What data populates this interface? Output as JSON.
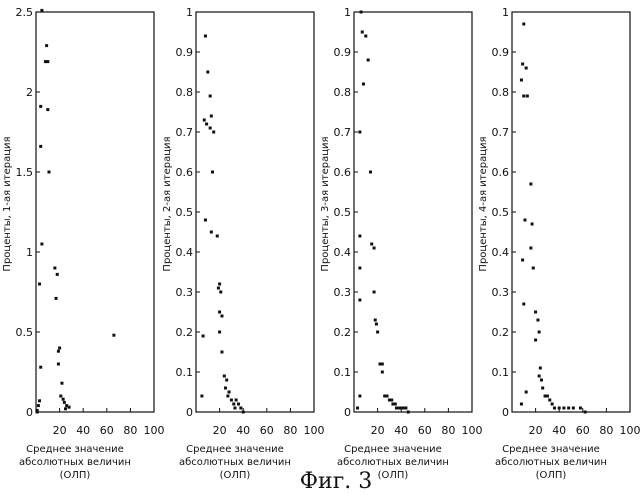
{
  "figure": {
    "caption": "Фиг. 3"
  },
  "chart_data": [
    {
      "type": "scatter",
      "ylabel": "Проценты, 1-ая итерация",
      "xlabel_lines": [
        "Среднее значение",
        "абсолютных величин",
        "(ОЛП)"
      ],
      "xlim": [
        0,
        100
      ],
      "ylim": [
        0,
        2.5
      ],
      "xticks": [
        20,
        40,
        60,
        80,
        100
      ],
      "yticks": [
        0,
        0.5,
        1,
        1.5,
        2,
        2.5
      ],
      "ytick_labels": [
        "0",
        "0.5",
        "1",
        "1.5",
        "2",
        "2.5"
      ],
      "grid": false,
      "points": [
        [
          5,
          2.51
        ],
        [
          9,
          2.29
        ],
        [
          8,
          2.19
        ],
        [
          10,
          2.19
        ],
        [
          4,
          1.91
        ],
        [
          10,
          1.89
        ],
        [
          4,
          1.66
        ],
        [
          11,
          1.5
        ],
        [
          5,
          1.05
        ],
        [
          16,
          0.9
        ],
        [
          18,
          0.86
        ],
        [
          3,
          0.8
        ],
        [
          17,
          0.71
        ],
        [
          20,
          0.4
        ],
        [
          19,
          0.38
        ],
        [
          19,
          0.3
        ],
        [
          4,
          0.28
        ],
        [
          22,
          0.18
        ],
        [
          21,
          0.1
        ],
        [
          23,
          0.08
        ],
        [
          24,
          0.06
        ],
        [
          26,
          0.04
        ],
        [
          28,
          0.03
        ],
        [
          25,
          0.02
        ],
        [
          3,
          0.07
        ],
        [
          2,
          0.04
        ],
        [
          1,
          0.01
        ],
        [
          1,
          0.0
        ],
        [
          66,
          0.48
        ]
      ]
    },
    {
      "type": "scatter",
      "ylabel": "Проценты, 2-ая итерация",
      "xlabel_lines": [
        "Среднее значение",
        "абсолютных величин",
        "(ОЛП)"
      ],
      "xlim": [
        0,
        100
      ],
      "ylim": [
        0,
        1.0
      ],
      "xticks": [
        20,
        40,
        60,
        80,
        100
      ],
      "yticks": [
        0,
        0.1,
        0.2,
        0.3,
        0.4,
        0.5,
        0.6,
        0.7,
        0.8,
        0.9,
        1.0
      ],
      "ytick_labels": [
        "0",
        "0.1",
        "0.2",
        "0.3",
        "0.4",
        "0.5",
        "0.6",
        "0.7",
        "0.8",
        "0.9",
        "1"
      ],
      "grid": false,
      "points": [
        [
          8,
          0.94
        ],
        [
          10,
          0.85
        ],
        [
          12,
          0.79
        ],
        [
          7,
          0.73
        ],
        [
          9,
          0.72
        ],
        [
          12,
          0.71
        ],
        [
          13,
          0.74
        ],
        [
          15,
          0.7
        ],
        [
          14,
          0.6
        ],
        [
          8,
          0.48
        ],
        [
          13,
          0.45
        ],
        [
          18,
          0.44
        ],
        [
          20,
          0.32
        ],
        [
          19,
          0.31
        ],
        [
          21,
          0.3
        ],
        [
          20,
          0.25
        ],
        [
          22,
          0.24
        ],
        [
          20,
          0.2
        ],
        [
          6,
          0.19
        ],
        [
          22,
          0.15
        ],
        [
          24,
          0.09
        ],
        [
          26,
          0.08
        ],
        [
          25,
          0.06
        ],
        [
          28,
          0.05
        ],
        [
          27,
          0.04
        ],
        [
          30,
          0.03
        ],
        [
          32,
          0.02
        ],
        [
          34,
          0.03
        ],
        [
          36,
          0.02
        ],
        [
          38,
          0.01
        ],
        [
          40,
          0.0
        ],
        [
          33,
          0.01
        ],
        [
          5,
          0.04
        ]
      ]
    },
    {
      "type": "scatter",
      "ylabel": "Проценты, 3-ая итерация",
      "xlabel_lines": [
        "Среднее значение",
        "абсолютных величин",
        "(ОЛП)"
      ],
      "xlim": [
        0,
        100
      ],
      "ylim": [
        0,
        1.0
      ],
      "xticks": [
        20,
        40,
        60,
        80,
        100
      ],
      "yticks": [
        0,
        0.1,
        0.2,
        0.3,
        0.4,
        0.5,
        0.6,
        0.7,
        0.8,
        0.9,
        1.0
      ],
      "ytick_labels": [
        "0",
        "0.1",
        "0.2",
        "0.3",
        "0.4",
        "0.5",
        "0.6",
        "0.7",
        "0.8",
        "0.9",
        "1"
      ],
      "grid": false,
      "points": [
        [
          6,
          1.0
        ],
        [
          7,
          0.95
        ],
        [
          10,
          0.94
        ],
        [
          12,
          0.88
        ],
        [
          8,
          0.82
        ],
        [
          5,
          0.7
        ],
        [
          14,
          0.6
        ],
        [
          15,
          0.42
        ],
        [
          17,
          0.41
        ],
        [
          5,
          0.44
        ],
        [
          5,
          0.36
        ],
        [
          5,
          0.28
        ],
        [
          17,
          0.3
        ],
        [
          18,
          0.23
        ],
        [
          19,
          0.22
        ],
        [
          20,
          0.2
        ],
        [
          22,
          0.12
        ],
        [
          24,
          0.12
        ],
        [
          24,
          0.1
        ],
        [
          26,
          0.04
        ],
        [
          28,
          0.04
        ],
        [
          30,
          0.03
        ],
        [
          32,
          0.03
        ],
        [
          33,
          0.02
        ],
        [
          35,
          0.02
        ],
        [
          36,
          0.01
        ],
        [
          38,
          0.01
        ],
        [
          40,
          0.01
        ],
        [
          42,
          0.01
        ],
        [
          44,
          0.01
        ],
        [
          46,
          0.0
        ],
        [
          5,
          0.04
        ],
        [
          3,
          0.01
        ]
      ]
    },
    {
      "type": "scatter",
      "ylabel": "Проценты, 4-ая итерация",
      "xlabel_lines": [
        "Среднее значение",
        "абсолютных величин",
        "(ОЛП)"
      ],
      "xlim": [
        0,
        100
      ],
      "ylim": [
        0,
        1.0
      ],
      "xticks": [
        20,
        40,
        60,
        80,
        100
      ],
      "yticks": [
        0,
        0.1,
        0.2,
        0.3,
        0.4,
        0.5,
        0.6,
        0.7,
        0.8,
        0.9,
        1.0
      ],
      "ytick_labels": [
        "0",
        "0.1",
        "0.2",
        "0.3",
        "0.4",
        "0.5",
        "0.6",
        "0.7",
        "0.8",
        "0.9",
        "1"
      ],
      "grid": false,
      "points": [
        [
          10,
          0.97
        ],
        [
          9,
          0.87
        ],
        [
          12,
          0.86
        ],
        [
          8,
          0.83
        ],
        [
          10,
          0.79
        ],
        [
          13,
          0.79
        ],
        [
          16,
          0.57
        ],
        [
          17,
          0.47
        ],
        [
          11,
          0.48
        ],
        [
          9,
          0.38
        ],
        [
          16,
          0.41
        ],
        [
          18,
          0.36
        ],
        [
          10,
          0.27
        ],
        [
          20,
          0.25
        ],
        [
          22,
          0.23
        ],
        [
          23,
          0.2
        ],
        [
          20,
          0.18
        ],
        [
          24,
          0.11
        ],
        [
          23,
          0.09
        ],
        [
          25,
          0.08
        ],
        [
          26,
          0.06
        ],
        [
          28,
          0.04
        ],
        [
          30,
          0.04
        ],
        [
          32,
          0.03
        ],
        [
          34,
          0.02
        ],
        [
          36,
          0.01
        ],
        [
          40,
          0.01
        ],
        [
          44,
          0.01
        ],
        [
          48,
          0.01
        ],
        [
          52,
          0.01
        ],
        [
          58,
          0.01
        ],
        [
          62,
          0.0
        ],
        [
          12,
          0.05
        ],
        [
          8,
          0.02
        ]
      ]
    }
  ]
}
